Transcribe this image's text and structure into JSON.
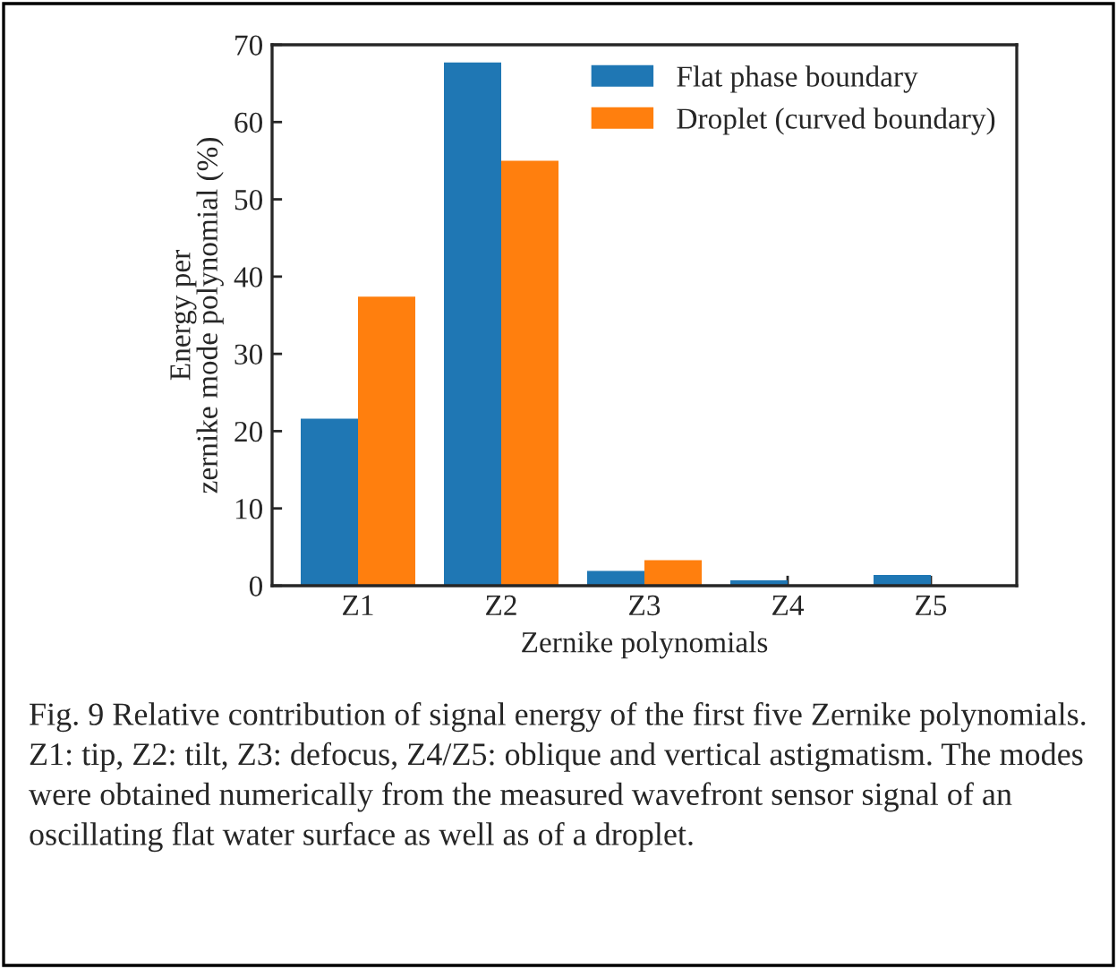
{
  "chart_data": {
    "type": "bar",
    "xlabel": "Zernike polynomials",
    "ylabel": "Energy per\nzernike mode polynomial (%)",
    "categories": [
      "Z1",
      "Z2",
      "Z3",
      "Z4",
      "Z5"
    ],
    "series": [
      {
        "name": "Flat phase boundary",
        "color": "#1f77b4",
        "values": [
          21.6,
          67.7,
          1.9,
          0.7,
          1.4
        ]
      },
      {
        "name": "Droplet (curved boundary)",
        "color": "#ff7f0e",
        "values": [
          37.4,
          55.0,
          3.3,
          null,
          null
        ]
      }
    ],
    "ylim": [
      0,
      70
    ],
    "yticks": [
      0,
      10,
      20,
      30,
      40,
      50,
      60,
      70
    ],
    "legend": "top right",
    "grid": false,
    "annotations": [
      "Fig. 9 Relative contribution of signal energy of the first five Zernike polynomials. Z1: tip, Z2: tilt, Z3: defocus, Z4/Z5: oblique and vertical astigmatism. The modes were obtained numerically from the measured wavefront sensor signal of an oscillating flat water surface as well as of a droplet."
    ]
  }
}
